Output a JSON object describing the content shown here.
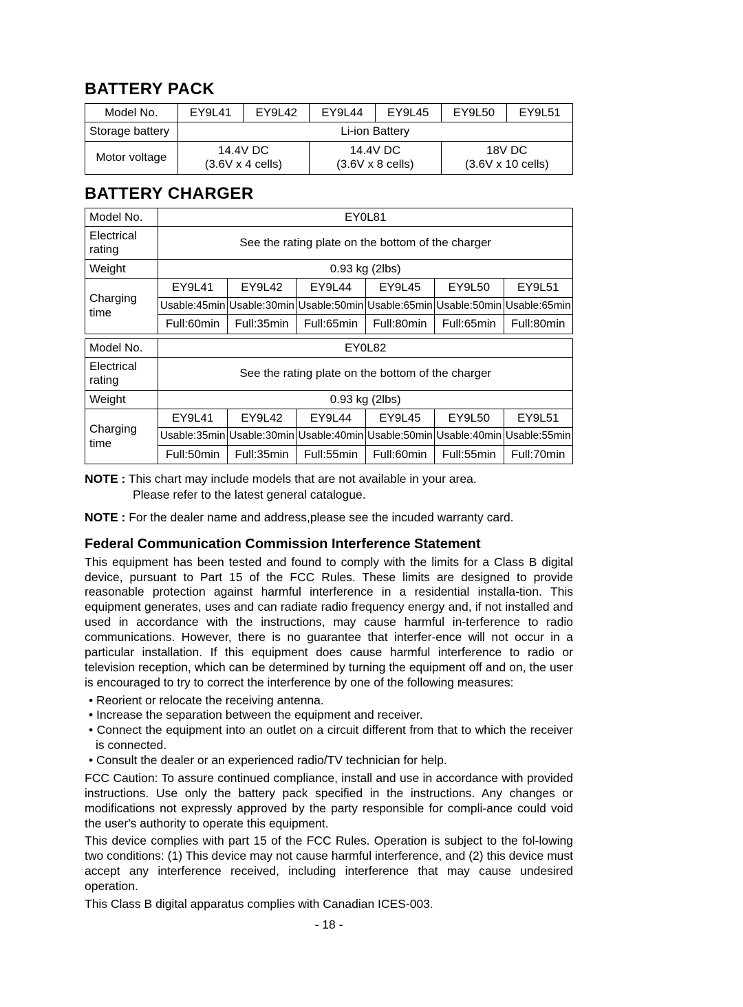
{
  "sections": {
    "battery_pack": {
      "title": "BATTERY PACK",
      "row_model_label": "Model No.",
      "models": [
        "EY9L41",
        "EY9L42",
        "EY9L44",
        "EY9L45",
        "EY9L50",
        "EY9L51"
      ],
      "row_storage_label": "Storage battery",
      "storage_value": "Li-ion Battery",
      "row_motor_label": "Motor voltage",
      "voltages": [
        {
          "line1": "14.4V DC",
          "line2": "(3.6V x 4 cells)"
        },
        {
          "line1": "14.4V DC",
          "line2": "(3.6V x 8 cells)"
        },
        {
          "line1": "18V DC",
          "line2": "(3.6V x 10 cells)"
        }
      ]
    },
    "battery_charger": {
      "title": "BATTERY CHARGER",
      "chargers": [
        {
          "model_label": "Model No.",
          "model": "EY0L81",
          "electrical_label": "Electrical rating",
          "electrical_value": "See the rating plate on the bottom of the charger",
          "weight_label": "Weight",
          "weight_value": "0.93 kg (2lbs)",
          "charging_label": "Charging time",
          "headers": [
            "EY9L41",
            "EY9L42",
            "EY9L44",
            "EY9L45",
            "EY9L50",
            "EY9L51"
          ],
          "usable": [
            "Usable:45min",
            "Usable:30min",
            "Usable:50min",
            "Usable:65min",
            "Usable:50min",
            "Usable:65min"
          ],
          "full": [
            "Full:60min",
            "Full:35min",
            "Full:65min",
            "Full:80min",
            "Full:65min",
            "Full:80min"
          ]
        },
        {
          "model_label": "Model No.",
          "model": "EY0L82",
          "electrical_label": "Electrical rating",
          "electrical_value": "See the rating plate on the bottom of the charger",
          "weight_label": "Weight",
          "weight_value": "0.93 kg (2lbs)",
          "charging_label": "Charging time",
          "headers": [
            "EY9L41",
            "EY9L42",
            "EY9L44",
            "EY9L45",
            "EY9L50",
            "EY9L51"
          ],
          "usable": [
            "Usable:35min",
            "Usable:30min",
            "Usable:40min",
            "Usable:50min",
            "Usable:40min",
            "Usable:55min"
          ],
          "full": [
            "Full:50min",
            "Full:35min",
            "Full:55min",
            "Full:60min",
            "Full:55min",
            "Full:70min"
          ]
        }
      ]
    }
  },
  "notes": {
    "note1_bold": "NOTE :",
    "note1_a": "This chart may include models that are not available in your area.",
    "note1_b": "Please refer to the latest general catalogue.",
    "note2_bold": "NOTE :",
    "note2": "For the dealer name and address,please see the incuded warranty card."
  },
  "fcc": {
    "heading": "Federal Communication Commission Interference Statement",
    "para1": "This equipment has been tested and found to comply with the limits for a Class B digital device, pursuant to Part 15 of the FCC Rules. These limits are designed to provide reasonable protection against harmful interference in a residential installa-tion. This equipment generates, uses and can radiate radio frequency energy and, if not installed and used in accordance with the instructions, may cause harmful in-terference to radio communications. However, there is no guarantee that interfer-ence will not occur in a particular installation. If this equipment does cause harmful interference to radio or television reception, which can be determined by turning the equipment off and on, the user is encouraged to try to correct the interference by one of the following measures:",
    "bullets": [
      "Reorient or relocate the receiving antenna.",
      "Increase the separation between the equipment and receiver.",
      "Connect the equipment into an outlet on a circuit different from that to which the receiver is connected.",
      "Consult the dealer or an experienced radio/TV technician for help."
    ],
    "para2": "FCC Caution: To assure continued compliance, install and use in accordance with provided instructions. Use only the battery pack specified in the instructions. Any changes or modifications not expressly approved by the party responsible for compli-ance could void the user's authority to operate this equipment.",
    "para3": "This device complies with part 15 of the FCC Rules. Operation is subject to the fol-lowing two conditions: (1) This device may not cause harmful interference, and (2) this device must accept any interference received, including interference that may cause undesired operation.",
    "para4": "This Class B digital apparatus complies with Canadian ICES-003."
  },
  "page_number": "- 18 -"
}
